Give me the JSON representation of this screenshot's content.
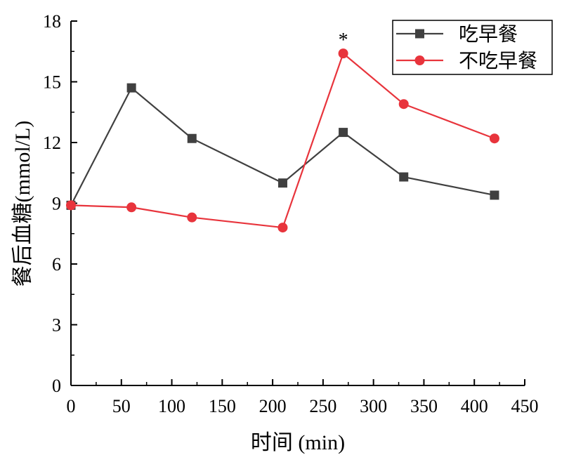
{
  "chart_data": {
    "type": "line",
    "xlabel": "时间 (min)",
    "ylabel": "餐后血糖(mmol/L)",
    "xlim": [
      0,
      450
    ],
    "ylim": [
      0,
      18
    ],
    "x_ticks": [
      0,
      50,
      100,
      150,
      200,
      250,
      300,
      350,
      400,
      450
    ],
    "y_ticks": [
      0,
      3,
      6,
      9,
      12,
      15,
      18
    ],
    "grid": false,
    "legend_position": "top-right",
    "x": [
      0,
      60,
      120,
      210,
      270,
      330,
      420
    ],
    "series": [
      {
        "name": "吃早餐",
        "color": "#404040",
        "marker": "square",
        "values": [
          8.9,
          14.7,
          12.2,
          10.0,
          12.5,
          10.3,
          9.4
        ]
      },
      {
        "name": "不吃早餐",
        "color": "#e8343c",
        "marker": "circle",
        "values": [
          8.9,
          8.8,
          8.3,
          7.8,
          16.4,
          13.9,
          12.2
        ]
      }
    ],
    "annotations": [
      {
        "text": "*",
        "x": 270,
        "y": 16.4
      }
    ]
  }
}
